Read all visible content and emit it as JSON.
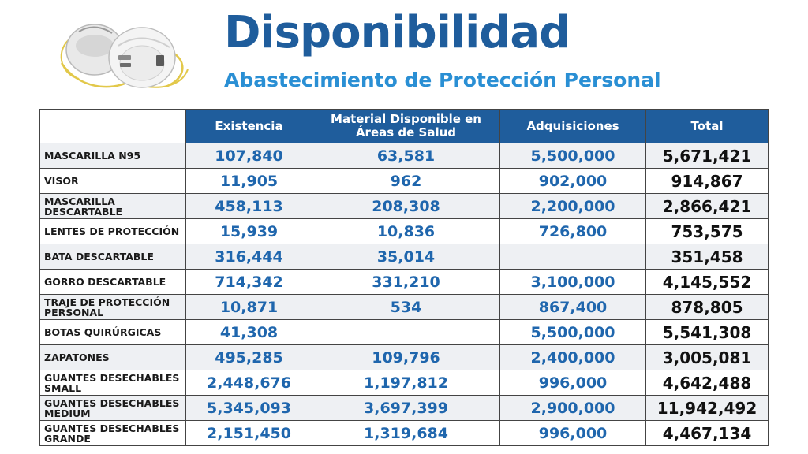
{
  "header": {
    "title": "Disponibilidad",
    "subtitle": "Abastecimiento de Protección Personal"
  },
  "colors": {
    "title": "#1f5d9c",
    "subtitle": "#2a8fd4",
    "header_bg": "#1f5d9c",
    "number_text": "#1f66ad",
    "total_text": "#111111",
    "stripe": "#eef0f3"
  },
  "image": {
    "icon": "n95-masks-image"
  },
  "table": {
    "columns": [
      "",
      "Existencia",
      "Material Disponible en Áreas de Salud",
      "Adquisiciones",
      "Total"
    ],
    "rows": [
      {
        "item": "MASCARILLA N95",
        "existencia": "107,840",
        "disponible": "63,581",
        "adquisiciones": "5,500,000",
        "total": "5,671,421"
      },
      {
        "item": "VISOR",
        "existencia": "11,905",
        "disponible": "962",
        "adquisiciones": "902,000",
        "total": "914,867"
      },
      {
        "item": "MASCARILLA DESCARTABLE",
        "existencia": "458,113",
        "disponible": "208,308",
        "adquisiciones": "2,200,000",
        "total": "2,866,421"
      },
      {
        "item": "LENTES DE PROTECCIÓN",
        "existencia": "15,939",
        "disponible": "10,836",
        "adquisiciones": "726,800",
        "total": "753,575"
      },
      {
        "item": "BATA DESCARTABLE",
        "existencia": "316,444",
        "disponible": "35,014",
        "adquisiciones": "",
        "total": "351,458"
      },
      {
        "item": "GORRO DESCARTABLE",
        "existencia": "714,342",
        "disponible": "331,210",
        "adquisiciones": "3,100,000",
        "total": "4,145,552"
      },
      {
        "item": "TRAJE DE PROTECCIÓN PERSONAL",
        "existencia": "10,871",
        "disponible": "534",
        "adquisiciones": "867,400",
        "total": "878,805"
      },
      {
        "item": "BOTAS QUIRÚRGICAS",
        "existencia": "41,308",
        "disponible": "",
        "adquisiciones": "5,500,000",
        "total": "5,541,308"
      },
      {
        "item": "ZAPATONES",
        "existencia": "495,285",
        "disponible": "109,796",
        "adquisiciones": "2,400,000",
        "total": "3,005,081"
      },
      {
        "item": "GUANTES DESECHABLES SMALL",
        "existencia": "2,448,676",
        "disponible": "1,197,812",
        "adquisiciones": "996,000",
        "total": "4,642,488"
      },
      {
        "item": "GUANTES DESECHABLES MEDIUM",
        "existencia": "5,345,093",
        "disponible": "3,697,399",
        "adquisiciones": "2,900,000",
        "total": "11,942,492"
      },
      {
        "item": "GUANTES DESECHABLES GRANDE",
        "existencia": "2,151,450",
        "disponible": "1,319,684",
        "adquisiciones": "996,000",
        "total": "4,467,134"
      }
    ]
  }
}
